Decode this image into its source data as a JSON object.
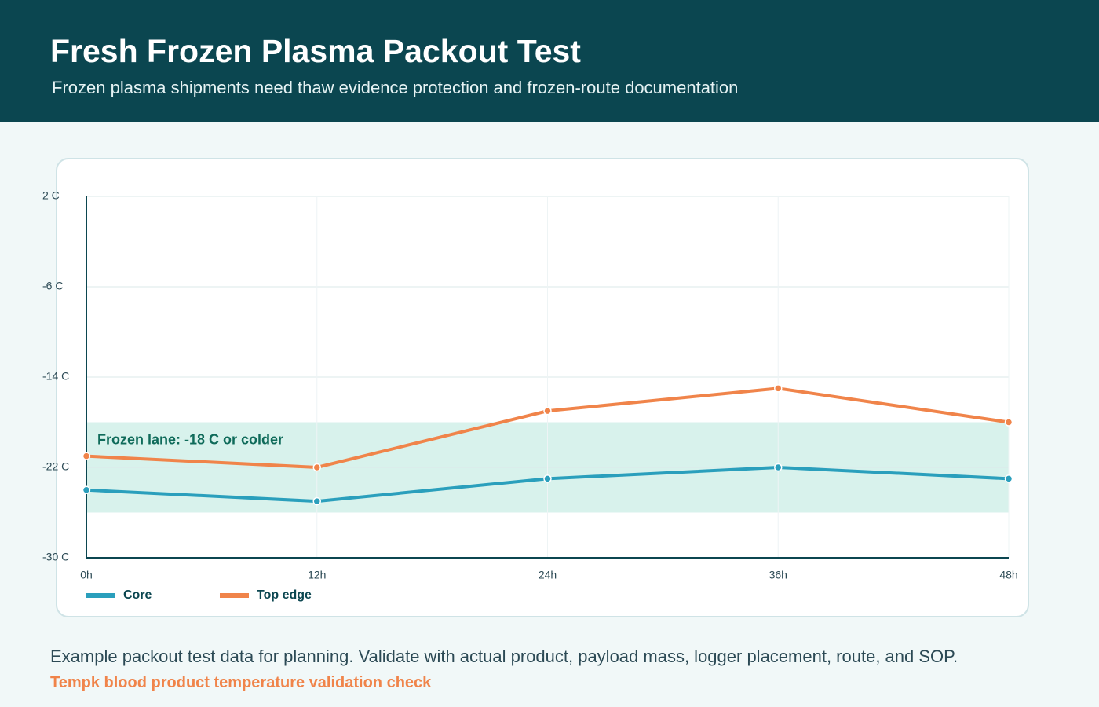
{
  "header": {
    "title": "Fresh Frozen Plasma Packout Test",
    "subtitle": "Frozen plasma shipments need thaw evidence protection and frozen-route documentation"
  },
  "chart_data": {
    "type": "line",
    "categories": [
      "0h",
      "12h",
      "24h",
      "36h",
      "48h"
    ],
    "series": [
      {
        "name": "Core",
        "color": "#2a9fbc",
        "values": [
          -24,
          -25,
          -23,
          -22,
          -23
        ]
      },
      {
        "name": "Top edge",
        "color": "#f0844a",
        "values": [
          -21,
          -22,
          -17,
          -15,
          -18
        ]
      }
    ],
    "band": {
      "label": "Frozen lane: -18 C or colder",
      "from": -18,
      "to": -26,
      "color": "#d8f2ec"
    },
    "ylim": [
      -30,
      2
    ],
    "yticks": [
      {
        "value": 2,
        "label": "2 C"
      },
      {
        "value": -6,
        "label": "-6 C"
      },
      {
        "value": -14,
        "label": "-14 C"
      },
      {
        "value": -22,
        "label": "-22 C"
      },
      {
        "value": -30,
        "label": "-30 C"
      }
    ],
    "grid": true
  },
  "footer": {
    "note": "Example packout test data for planning. Validate with actual product, payload mass, logger placement, route, and SOP.",
    "source": "Tempk blood product temperature validation check"
  }
}
